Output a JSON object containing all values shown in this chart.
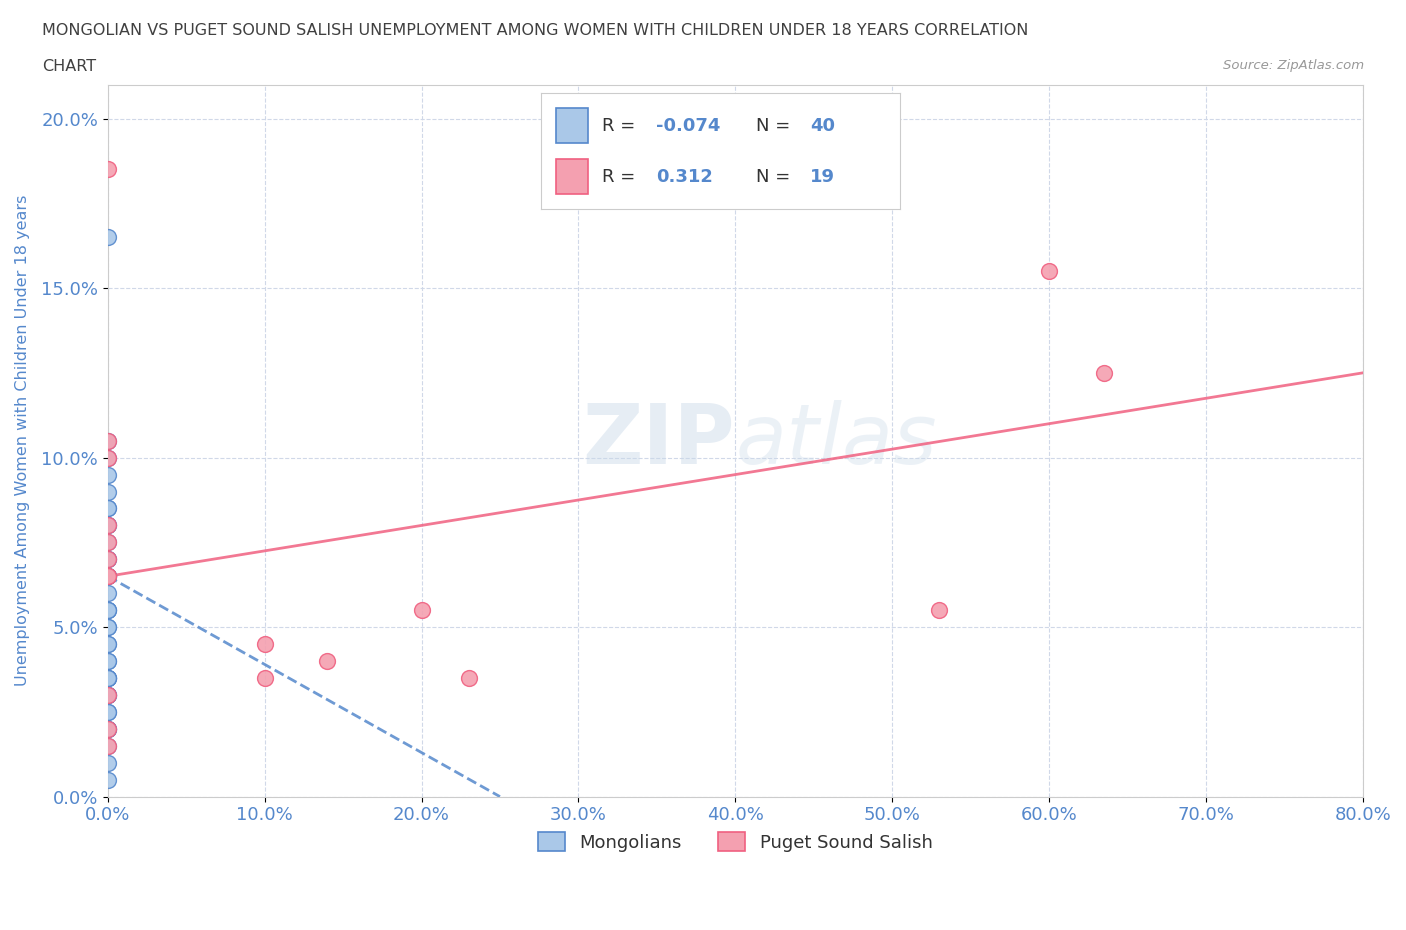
{
  "title_line1": "MONGOLIAN VS PUGET SOUND SALISH UNEMPLOYMENT AMONG WOMEN WITH CHILDREN UNDER 18 YEARS CORRELATION",
  "title_line2": "CHART",
  "source": "Source: ZipAtlas.com",
  "xlabel_ticks": [
    0.0,
    10.0,
    20.0,
    30.0,
    40.0,
    50.0,
    60.0,
    70.0,
    80.0
  ],
  "ylabel_ticks": [
    0.0,
    5.0,
    10.0,
    15.0,
    20.0
  ],
  "xlabel_labels": [
    "0.0%",
    "10.0%",
    "20.0%",
    "30.0%",
    "40.0%",
    "50.0%",
    "60.0%",
    "70.0%",
    "80.0%"
  ],
  "ylabel_labels": [
    "0.0%",
    "5.0%",
    "10.0%",
    "15.0%",
    "20.0%"
  ],
  "xlim": [
    0,
    80
  ],
  "ylim": [
    0,
    21
  ],
  "ylabel": "Unemployment Among Women with Children Under 18 years",
  "mongolian_x": [
    0.0,
    0.0,
    0.0,
    0.0,
    0.0,
    0.0,
    0.0,
    0.0,
    0.0,
    0.0,
    0.0,
    0.0,
    0.0,
    0.0,
    0.0,
    0.0,
    0.0,
    0.0,
    0.0,
    0.0,
    0.0,
    0.0,
    0.0,
    0.0,
    0.0,
    0.0,
    0.0,
    0.0,
    0.0,
    0.0,
    0.0,
    0.0,
    0.0,
    0.0,
    0.0,
    0.0,
    0.0,
    0.0,
    0.0,
    0.0
  ],
  "mongolian_y": [
    16.5,
    10.5,
    10.0,
    9.5,
    9.0,
    8.5,
    8.5,
    8.0,
    8.0,
    7.5,
    7.0,
    7.0,
    6.5,
    6.5,
    6.5,
    6.0,
    5.5,
    5.5,
    5.5,
    5.0,
    5.0,
    4.5,
    4.5,
    4.0,
    4.0,
    3.5,
    3.5,
    3.5,
    3.5,
    3.0,
    3.0,
    3.0,
    2.5,
    2.5,
    2.0,
    2.0,
    2.0,
    1.5,
    1.0,
    0.5
  ],
  "salish_x": [
    0.0,
    0.0,
    0.0,
    0.0,
    0.0,
    0.0,
    0.0,
    0.0,
    10.0,
    10.0,
    14.0,
    20.0,
    23.0,
    53.0,
    60.0,
    63.5,
    0.0,
    0.0,
    0.0
  ],
  "salish_y": [
    18.5,
    10.5,
    10.0,
    8.0,
    7.5,
    7.0,
    6.5,
    6.5,
    4.5,
    3.5,
    4.0,
    5.5,
    3.5,
    5.5,
    15.5,
    12.5,
    3.0,
    2.0,
    1.5
  ],
  "mongolian_color": "#aac8e8",
  "salish_color": "#f4a0b0",
  "mongolian_trend_color": "#5588cc",
  "salish_trend_color": "#f06080",
  "mongolian_trend_x": [
    0.0,
    25.0
  ],
  "mongolian_trend_y": [
    6.5,
    0.0
  ],
  "salish_trend_x": [
    0.0,
    80.0
  ],
  "salish_trend_y": [
    6.5,
    12.5
  ],
  "r_mongolian": -0.074,
  "n_mongolian": 40,
  "r_salish": 0.312,
  "n_salish": 19,
  "legend_mongolians": "Mongolians",
  "legend_salish": "Puget Sound Salish",
  "watermark_zip": "ZIP",
  "watermark_atlas": "atlas",
  "background_color": "#ffffff",
  "grid_color": "#d0d8e8",
  "title_color": "#404040",
  "axis_label_color": "#5588cc"
}
